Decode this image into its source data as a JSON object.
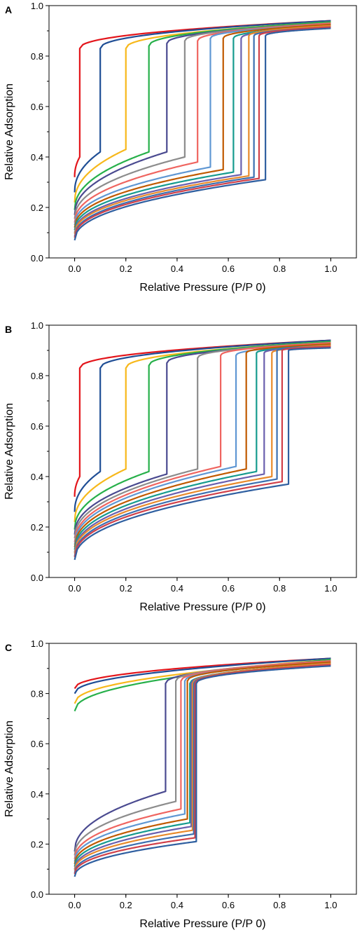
{
  "colors": {
    "series": [
      "#e3151b",
      "#1f4e95",
      "#f7b81b",
      "#27b04a",
      "#4a4a90",
      "#8c8c8c",
      "#ef6560",
      "#5f97d3",
      "#c05a00",
      "#169b8e",
      "#6a5fae",
      "#e88a2b",
      "#3c6fb0",
      "#d0404a",
      "#2f5fa0"
    ],
    "axis": "#000000"
  },
  "chart_data": [
    {
      "panel": "A",
      "type": "line",
      "xlabel": "Relative Pressure (P/P 0)",
      "ylabel": "Relative Adsorption",
      "xlim": [
        -0.1,
        1.1
      ],
      "ylim": [
        0,
        1.0
      ],
      "xticks": [
        "0.0",
        "0.2",
        "0.4",
        "0.6",
        "0.8",
        "1.0"
      ],
      "yticks": [
        "0.0",
        "0.2",
        "0.4",
        "0.6",
        "0.8",
        "1.0"
      ],
      "grid": false,
      "series": [
        {
          "start": 0.32,
          "jump_x": 0.02,
          "low": 0.4,
          "high": 0.83,
          "end": 0.94
        },
        {
          "start": 0.26,
          "jump_x": 0.1,
          "low": 0.42,
          "high": 0.83,
          "end": 0.94
        },
        {
          "start": 0.22,
          "jump_x": 0.2,
          "low": 0.43,
          "high": 0.83,
          "end": 0.935
        },
        {
          "start": 0.19,
          "jump_x": 0.29,
          "low": 0.42,
          "high": 0.84,
          "end": 0.935
        },
        {
          "start": 0.17,
          "jump_x": 0.36,
          "low": 0.42,
          "high": 0.85,
          "end": 0.93
        },
        {
          "start": 0.155,
          "jump_x": 0.43,
          "low": 0.4,
          "high": 0.86,
          "end": 0.93
        },
        {
          "start": 0.14,
          "jump_x": 0.48,
          "low": 0.38,
          "high": 0.86,
          "end": 0.93
        },
        {
          "start": 0.13,
          "jump_x": 0.53,
          "low": 0.36,
          "high": 0.87,
          "end": 0.925
        },
        {
          "start": 0.12,
          "jump_x": 0.58,
          "low": 0.35,
          "high": 0.87,
          "end": 0.925
        },
        {
          "start": 0.11,
          "jump_x": 0.62,
          "low": 0.34,
          "high": 0.87,
          "end": 0.92
        },
        {
          "start": 0.1,
          "jump_x": 0.65,
          "low": 0.33,
          "high": 0.87,
          "end": 0.92
        },
        {
          "start": 0.095,
          "jump_x": 0.68,
          "low": 0.325,
          "high": 0.88,
          "end": 0.92
        },
        {
          "start": 0.085,
          "jump_x": 0.7,
          "low": 0.32,
          "high": 0.88,
          "end": 0.915
        },
        {
          "start": 0.08,
          "jump_x": 0.72,
          "low": 0.315,
          "high": 0.88,
          "end": 0.915
        },
        {
          "start": 0.07,
          "jump_x": 0.745,
          "low": 0.31,
          "high": 0.88,
          "end": 0.91
        }
      ]
    },
    {
      "panel": "B",
      "type": "line",
      "xlabel": "Relative Pressure (P/P 0)",
      "ylabel": "Relative Adsorption",
      "xlim": [
        -0.1,
        1.1
      ],
      "ylim": [
        0,
        1.0
      ],
      "xticks": [
        "0.0",
        "0.2",
        "0.4",
        "0.6",
        "0.8",
        "1.0"
      ],
      "yticks": [
        "0.0",
        "0.2",
        "0.4",
        "0.6",
        "0.8",
        "1.0"
      ],
      "grid": false,
      "series": [
        {
          "start": 0.32,
          "jump_x": 0.02,
          "low": 0.4,
          "high": 0.83,
          "end": 0.94
        },
        {
          "start": 0.26,
          "jump_x": 0.1,
          "low": 0.42,
          "high": 0.83,
          "end": 0.94
        },
        {
          "start": 0.22,
          "jump_x": 0.2,
          "low": 0.43,
          "high": 0.83,
          "end": 0.935
        },
        {
          "start": 0.19,
          "jump_x": 0.29,
          "low": 0.42,
          "high": 0.84,
          "end": 0.935
        },
        {
          "start": 0.17,
          "jump_x": 0.36,
          "low": 0.41,
          "high": 0.85,
          "end": 0.93
        },
        {
          "start": 0.155,
          "jump_x": 0.48,
          "low": 0.43,
          "high": 0.87,
          "end": 0.93
        },
        {
          "start": 0.14,
          "jump_x": 0.57,
          "low": 0.44,
          "high": 0.88,
          "end": 0.93
        },
        {
          "start": 0.13,
          "jump_x": 0.63,
          "low": 0.44,
          "high": 0.88,
          "end": 0.925
        },
        {
          "start": 0.12,
          "jump_x": 0.67,
          "low": 0.43,
          "high": 0.89,
          "end": 0.925
        },
        {
          "start": 0.11,
          "jump_x": 0.71,
          "low": 0.42,
          "high": 0.89,
          "end": 0.92
        },
        {
          "start": 0.1,
          "jump_x": 0.74,
          "low": 0.41,
          "high": 0.89,
          "end": 0.92
        },
        {
          "start": 0.095,
          "jump_x": 0.77,
          "low": 0.4,
          "high": 0.89,
          "end": 0.92
        },
        {
          "start": 0.085,
          "jump_x": 0.79,
          "low": 0.39,
          "high": 0.9,
          "end": 0.915
        },
        {
          "start": 0.08,
          "jump_x": 0.81,
          "low": 0.38,
          "high": 0.9,
          "end": 0.915
        },
        {
          "start": 0.07,
          "jump_x": 0.835,
          "low": 0.37,
          "high": 0.9,
          "end": 0.91
        }
      ]
    },
    {
      "panel": "C",
      "type": "line",
      "xlabel": "Relative Pressure (P/P 0)",
      "ylabel": "Relative Adsorption",
      "xlim": [
        -0.1,
        1.1
      ],
      "ylim": [
        0,
        1.0
      ],
      "xticks": [
        "0.0",
        "0.2",
        "0.4",
        "0.6",
        "0.8",
        "1.0"
      ],
      "yticks": [
        "0.0",
        "0.2",
        "0.4",
        "0.6",
        "0.8",
        "1.0"
      ],
      "grid": false,
      "series": [
        {
          "start": 0.82,
          "jump_x": null,
          "low": null,
          "high": null,
          "end": 0.94
        },
        {
          "start": 0.8,
          "jump_x": null,
          "low": null,
          "high": null,
          "end": 0.94
        },
        {
          "start": 0.76,
          "jump_x": null,
          "low": null,
          "high": null,
          "end": 0.935
        },
        {
          "start": 0.73,
          "jump_x": null,
          "low": null,
          "high": null,
          "end": 0.935
        },
        {
          "start": 0.17,
          "jump_x": 0.355,
          "low": 0.41,
          "high": 0.84,
          "end": 0.93
        },
        {
          "start": 0.155,
          "jump_x": 0.395,
          "low": 0.37,
          "high": 0.85,
          "end": 0.93
        },
        {
          "start": 0.14,
          "jump_x": 0.415,
          "low": 0.34,
          "high": 0.85,
          "end": 0.93
        },
        {
          "start": 0.13,
          "jump_x": 0.43,
          "low": 0.32,
          "high": 0.85,
          "end": 0.925
        },
        {
          "start": 0.12,
          "jump_x": 0.44,
          "low": 0.3,
          "high": 0.85,
          "end": 0.925
        },
        {
          "start": 0.11,
          "jump_x": 0.45,
          "low": 0.285,
          "high": 0.84,
          "end": 0.92
        },
        {
          "start": 0.1,
          "jump_x": 0.455,
          "low": 0.27,
          "high": 0.84,
          "end": 0.92
        },
        {
          "start": 0.095,
          "jump_x": 0.46,
          "low": 0.255,
          "high": 0.84,
          "end": 0.92
        },
        {
          "start": 0.085,
          "jump_x": 0.465,
          "low": 0.24,
          "high": 0.84,
          "end": 0.915
        },
        {
          "start": 0.08,
          "jump_x": 0.47,
          "low": 0.225,
          "high": 0.84,
          "end": 0.915
        },
        {
          "start": 0.07,
          "jump_x": 0.475,
          "low": 0.21,
          "high": 0.84,
          "end": 0.91
        }
      ]
    }
  ]
}
